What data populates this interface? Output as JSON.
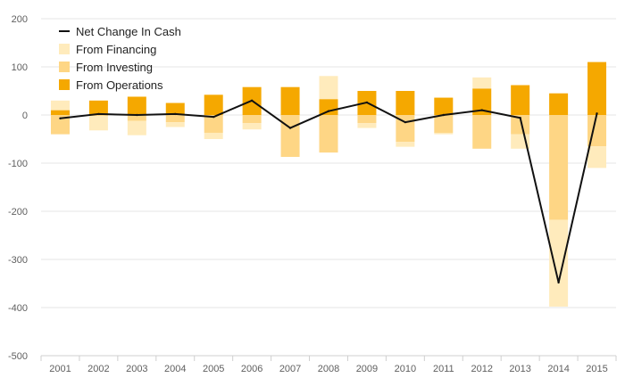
{
  "chart_data": {
    "type": "bar",
    "stacked": true,
    "categories": [
      "2001",
      "2002",
      "2003",
      "2004",
      "2005",
      "2006",
      "2007",
      "2008",
      "2009",
      "2010",
      "2011",
      "2012",
      "2013",
      "2014",
      "2015"
    ],
    "series": [
      {
        "name": "From Operations",
        "kind": "bar",
        "color": "#f5a800",
        "values": [
          10,
          30,
          38,
          25,
          42,
          58,
          58,
          33,
          50,
          50,
          36,
          55,
          62,
          45,
          110
        ]
      },
      {
        "name": "From Investing",
        "kind": "bar",
        "color": "#fed685",
        "values": [
          -40,
          -2,
          -12,
          -15,
          -37,
          -17,
          -87,
          -78,
          -17,
          -56,
          -37,
          -70,
          -40,
          -218,
          -65
        ]
      },
      {
        "name": "From Financing",
        "kind": "bar",
        "color": "#ffebbc",
        "values": [
          20,
          -30,
          -30,
          -10,
          -13,
          -13,
          0,
          48,
          -10,
          -10,
          -3,
          23,
          -30,
          -180,
          -45
        ]
      },
      {
        "name": "Net Change In Cash",
        "kind": "line",
        "color": "#111111",
        "values": [
          -7,
          2,
          0,
          2,
          -4,
          30,
          -27,
          8,
          26,
          -15,
          0,
          10,
          -6,
          -348,
          3
        ]
      }
    ],
    "y_ticks": [
      "200",
      "100",
      "0",
      "-100",
      "-200",
      "-300",
      "-400",
      "-500"
    ],
    "ylim": [
      -500,
      200
    ],
    "grid": true,
    "legend_position": "top-left"
  }
}
